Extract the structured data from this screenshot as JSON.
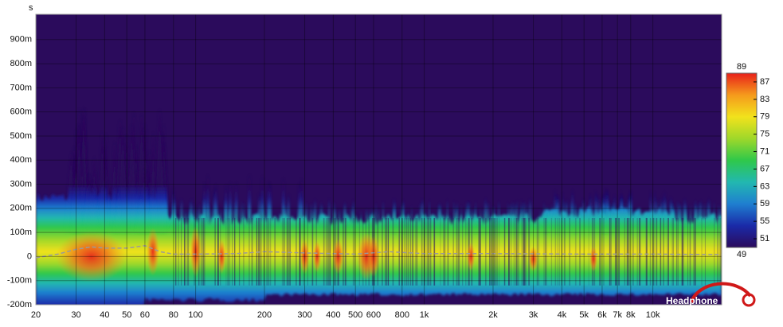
{
  "chart_data": {
    "type": "spectrogram",
    "y_unit_label": "s",
    "xscale": "log",
    "xlim": [
      20,
      20000
    ],
    "xticks": [
      20,
      30,
      40,
      50,
      60,
      80,
      100,
      200,
      300,
      400,
      500,
      600,
      800,
      {
        "value": 1000,
        "label": "1k"
      },
      {
        "value": 2000,
        "label": "2k"
      },
      {
        "value": 3000,
        "label": "3k"
      },
      {
        "value": 4000,
        "label": "4k"
      },
      {
        "value": 5000,
        "label": "5k"
      },
      {
        "value": 6000,
        "label": "6k"
      },
      {
        "value": 7000,
        "label": "7k"
      },
      {
        "value": 8000,
        "label": "8k"
      },
      {
        "value": 10000,
        "label": "10k"
      }
    ],
    "ylim": [
      -0.2,
      1.005
    ],
    "yticks": [
      {
        "value": -0.2,
        "label": "-200m"
      },
      {
        "value": -0.1,
        "label": "-100m"
      },
      0,
      {
        "value": 0.1,
        "label": "100m"
      },
      {
        "value": 0.2,
        "label": "200m"
      },
      {
        "value": 0.3,
        "label": "300m"
      },
      {
        "value": 0.4,
        "label": "400m"
      },
      {
        "value": 0.5,
        "label": "500m"
      },
      {
        "value": 0.6,
        "label": "600m"
      },
      {
        "value": 0.7,
        "label": "700m"
      },
      {
        "value": 0.8,
        "label": "800m"
      },
      {
        "value": 0.9,
        "label": "900m"
      }
    ],
    "grid": true,
    "background": "#2b0b5c",
    "colormap": [
      "#2b0b5c",
      "#1a2aa8",
      "#1f7fd0",
      "#22b8b0",
      "#2fc84a",
      "#9fd82a",
      "#f2e21c",
      "#f59a1c",
      "#e8201a"
    ],
    "clim": [
      49,
      89
    ],
    "cticks": [
      49,
      51,
      55,
      59,
      63,
      67,
      71,
      75,
      79,
      83,
      87,
      89
    ],
    "series": [
      {
        "color": "#9a9a9a",
        "x": [
          20,
          25,
          30,
          35,
          40,
          50,
          60,
          70,
          80,
          100,
          150,
          200,
          300,
          500,
          700,
          1000,
          2000,
          5000,
          10000,
          20000
        ],
        "values": [
          -0.005,
          0.01,
          0.03,
          0.04,
          0.035,
          0.035,
          0.045,
          0.02,
          0.01,
          0.01,
          0.012,
          0.02,
          0.015,
          0.01,
          0.02,
          0.012,
          0.012,
          0.01,
          0.01,
          0.008
        ]
      }
    ],
    "watermark": "Headphone"
  }
}
